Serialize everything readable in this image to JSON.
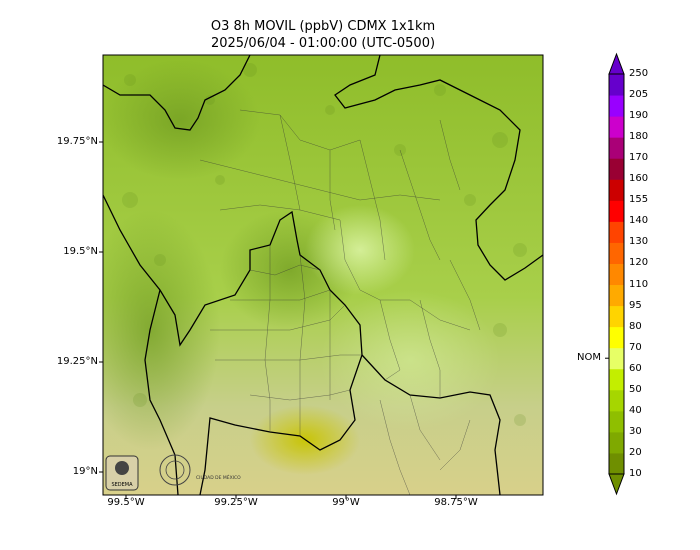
{
  "title": {
    "line1": "O3 8h MOVIL (ppbV) CDMX 1x1km",
    "line2": "2025/06/04 - 01:00:00 (UTC-0500)"
  },
  "axes": {
    "lat_labels": [
      "19.75°N",
      "19.5°N",
      "19.25°N",
      "19°N"
    ],
    "lon_labels": [
      "99.5°W",
      "99.25°W",
      "99°W",
      "98.75°W"
    ]
  },
  "colorbar": {
    "ticks": [
      "10",
      "20",
      "30",
      "40",
      "50",
      "60",
      "70",
      "80",
      "95",
      "110",
      "120",
      "130",
      "140",
      "155",
      "160",
      "170",
      "180",
      "190",
      "205",
      "250"
    ],
    "colors": [
      "#6f8f00",
      "#7fa900",
      "#8fbf00",
      "#a6d600",
      "#c3ee00",
      "#e7ff66",
      "#ffff00",
      "#ffd400",
      "#ffaa00",
      "#ff8800",
      "#ff6600",
      "#ff4400",
      "#ff0000",
      "#cc0000",
      "#990033",
      "#aa0077",
      "#cc00cc",
      "#9900ff",
      "#6600cc"
    ],
    "reference_label": "NOM",
    "reference_value": 70
  },
  "logos": {
    "left": "SEDEMA",
    "right": "CIUDAD DE MÉXICO"
  }
}
